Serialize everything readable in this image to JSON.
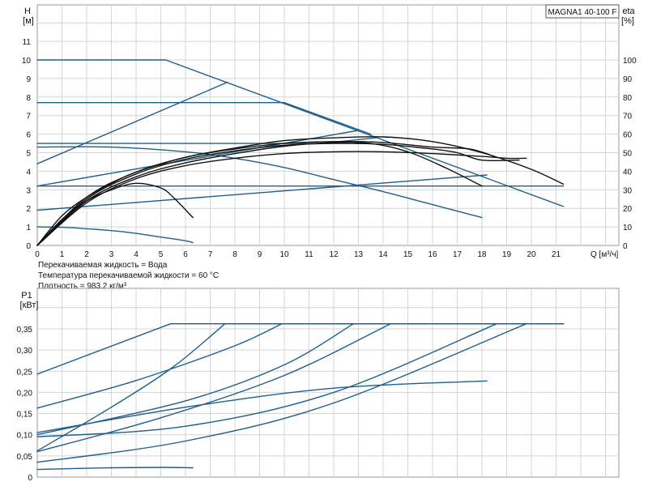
{
  "colors": {
    "blue": "#1d5f8c",
    "black": "#111111",
    "grid": "#d4d4d4"
  },
  "model_label": "MAGNA1 40-100 F",
  "notes": [
    "Перекачиваемая жидкость = Вода",
    "Температура перекачиваемой жидкости = 60 °C",
    "Плотность = 983.2 кг/м³"
  ],
  "chart_data": [
    {
      "type": "line",
      "ylabel_top": "H",
      "yunit": "[м]",
      "y2label_top": "eta",
      "y2unit": "[%]",
      "xlabel": "Q [м³/ч]",
      "xlim": [
        0,
        22
      ],
      "ylim": [
        0,
        12
      ],
      "y2lim": [
        0,
        120
      ],
      "x_ticks": [
        "0",
        "1",
        "2",
        "3",
        "4",
        "5",
        "6",
        "7",
        "8",
        "9",
        "10",
        "11",
        "12",
        "13",
        "14",
        "15",
        "16",
        "17",
        "18",
        "19",
        "20",
        "21"
      ],
      "y_ticks": [
        "0",
        "1",
        "2",
        "3",
        "4",
        "5",
        "6",
        "7",
        "8",
        "9",
        "10",
        "11"
      ],
      "y2_ticks": [
        "0",
        "10",
        "20",
        "30",
        "40",
        "50",
        "60",
        "70",
        "80",
        "90",
        "100"
      ],
      "grid": true,
      "series": [
        {
          "style": "blue",
          "x": [
            0,
            5.2,
            21.3
          ],
          "y": [
            10,
            10,
            2.1
          ]
        },
        {
          "style": "blue",
          "x": [
            0,
            10,
            13.5
          ],
          "y": [
            7.7,
            7.7,
            6
          ]
        },
        {
          "style": "blue",
          "x": [
            0,
            11.5,
            13.7
          ],
          "y": [
            5.5,
            5.5,
            5.8
          ]
        },
        {
          "style": "blue",
          "x": [
            0,
            21.3
          ],
          "y": [
            3.2,
            3.2
          ]
        },
        {
          "style": "blue",
          "x": [
            0,
            7.7
          ],
          "y": [
            4.4,
            8.8
          ]
        },
        {
          "style": "blue",
          "x": [
            0,
            13
          ],
          "y": [
            3.2,
            6.2
          ]
        },
        {
          "style": "blue",
          "x": [
            0,
            18.2
          ],
          "y": [
            1.9,
            3.8
          ]
        },
        {
          "style": "blue",
          "x": [
            0,
            3,
            6,
            8,
            10,
            12,
            14,
            16,
            18
          ],
          "y": [
            5.3,
            5.3,
            5.05,
            4.7,
            4.2,
            3.55,
            2.9,
            2.2,
            1.5
          ]
        },
        {
          "style": "blue",
          "x": [
            0,
            1,
            2,
            3,
            4,
            5,
            6,
            6.3
          ],
          "y": [
            1.0,
            0.98,
            0.9,
            0.8,
            0.65,
            0.45,
            0.25,
            0.15
          ]
        },
        {
          "style": "black",
          "x": [
            0,
            1,
            2,
            3,
            4,
            5,
            5.5,
            6.3
          ],
          "y": [
            0,
            1.4,
            2.4,
            3.0,
            3.35,
            3.1,
            2.6,
            1.5
          ]
        },
        {
          "style": "black",
          "x": [
            0,
            1,
            2,
            3,
            4,
            6,
            8,
            10,
            12,
            14,
            16,
            18,
            20,
            21.3
          ],
          "y": [
            0,
            1.6,
            2.6,
            3.35,
            3.95,
            4.75,
            5.25,
            5.65,
            5.8,
            5.85,
            5.6,
            5.0,
            4.1,
            3.3
          ]
        },
        {
          "style": "black",
          "x": [
            0,
            2,
            4,
            6,
            8,
            10,
            12,
            13.5,
            15,
            16.5,
            18
          ],
          "y": [
            0,
            2.4,
            3.7,
            4.45,
            4.95,
            5.35,
            5.55,
            5.5,
            5.05,
            4.2,
            3.2
          ]
        },
        {
          "style": "black",
          "x": [
            0,
            2,
            4,
            6,
            8,
            10,
            12,
            14,
            16,
            17,
            18,
            19.5
          ],
          "y": [
            0,
            2.5,
            3.85,
            4.65,
            5.1,
            5.4,
            5.5,
            5.45,
            5.2,
            5.0,
            4.6,
            4.6
          ]
        },
        {
          "style": "black",
          "x": [
            0,
            2,
            4,
            6,
            8,
            10,
            12,
            14,
            16,
            17.5,
            18.5
          ],
          "y": [
            0,
            2.6,
            3.95,
            4.75,
            5.2,
            5.5,
            5.6,
            5.55,
            5.3,
            5.2,
            4.8
          ]
        },
        {
          "style": "black",
          "x": [
            0,
            2,
            4,
            6,
            8,
            10,
            12,
            14,
            16,
            18,
            19,
            19.8
          ],
          "y": [
            0,
            2.3,
            3.6,
            4.3,
            4.7,
            4.95,
            5.05,
            5.05,
            4.95,
            4.8,
            4.7,
            4.7
          ]
        }
      ]
    },
    {
      "type": "line",
      "ylabel_top": "P1",
      "yunit": "[кВт]",
      "xlim": [
        0,
        22
      ],
      "ylim": [
        0,
        0.4
      ],
      "y_ticks": [
        "0",
        "0,05",
        "0,10",
        "0,15",
        "0,20",
        "0,25",
        "0,30",
        "0,35"
      ],
      "grid": true,
      "series": [
        {
          "style": "blue",
          "x": [
            0,
            5.4,
            21.3
          ],
          "y": [
            0.243,
            0.362,
            0.362
          ]
        },
        {
          "style": "blue",
          "x": [
            0,
            4,
            8,
            9.9
          ],
          "y": [
            0.163,
            0.228,
            0.31,
            0.362
          ]
        },
        {
          "style": "blue",
          "x": [
            0,
            3,
            5.5,
            7.6
          ],
          "y": [
            0.062,
            0.165,
            0.26,
            0.362
          ]
        },
        {
          "style": "blue",
          "x": [
            0,
            6,
            10,
            12.8
          ],
          "y": [
            0.1,
            0.18,
            0.265,
            0.362
          ]
        },
        {
          "style": "blue",
          "x": [
            0,
            5,
            10,
            14.3
          ],
          "y": [
            0.06,
            0.14,
            0.24,
            0.362
          ]
        },
        {
          "style": "blue",
          "x": [
            0,
            6,
            12,
            18.6
          ],
          "y": [
            0.095,
            0.12,
            0.2,
            0.362
          ]
        },
        {
          "style": "blue",
          "x": [
            0,
            6,
            12,
            19.8
          ],
          "y": [
            0.035,
            0.085,
            0.175,
            0.362
          ]
        },
        {
          "style": "blue",
          "x": [
            0,
            6,
            12,
            18.2
          ],
          "y": [
            0.105,
            0.165,
            0.21,
            0.227
          ]
        },
        {
          "style": "blue",
          "x": [
            0,
            3,
            5,
            6.3
          ],
          "y": [
            0.018,
            0.022,
            0.023,
            0.022
          ]
        }
      ]
    }
  ]
}
